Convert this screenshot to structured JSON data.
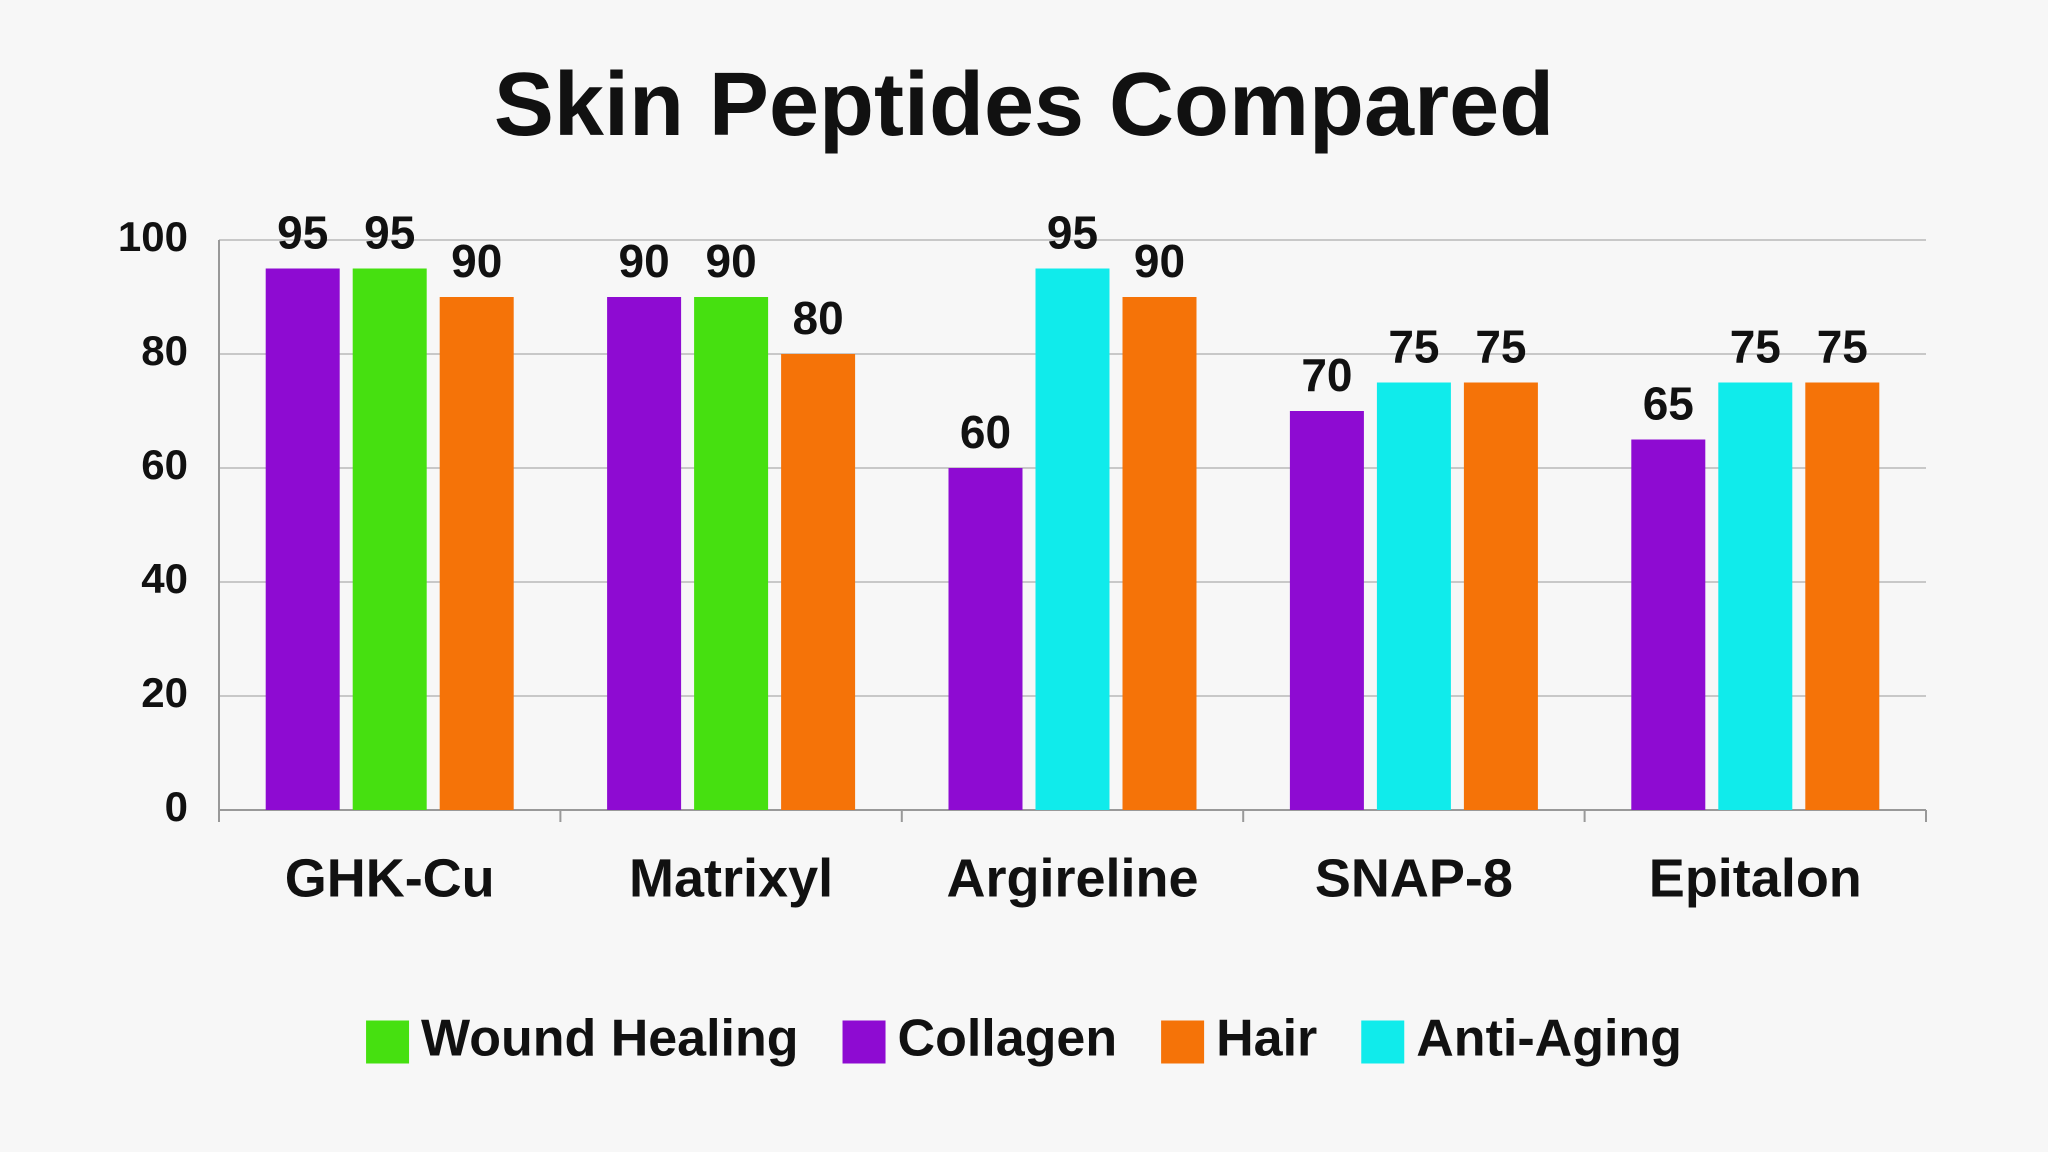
{
  "chart_data": {
    "type": "bar",
    "title": "Skin Peptides Compared",
    "categories": [
      "GHK-Cu",
      "Matrixyl",
      "Argireline",
      "SNAP-8",
      "Epitalon"
    ],
    "series": [
      {
        "name": "Wound Healing",
        "color": "#46e010",
        "values": [
          95,
          90,
          null,
          null,
          null
        ]
      },
      {
        "name": "Collagen",
        "color": "#8e0bd2",
        "values": [
          95,
          90,
          60,
          70,
          65
        ]
      },
      {
        "name": "Hair",
        "color": "#f57308",
        "values": [
          90,
          80,
          90,
          75,
          75
        ]
      },
      {
        "name": "Anti-Aging",
        "color": "#10ebeb",
        "values": [
          null,
          null,
          95,
          75,
          75
        ]
      }
    ],
    "ylim": [
      0,
      100
    ],
    "yticks": [
      0,
      20,
      40,
      60,
      80,
      100
    ],
    "grid": true,
    "legend": "bottom"
  }
}
